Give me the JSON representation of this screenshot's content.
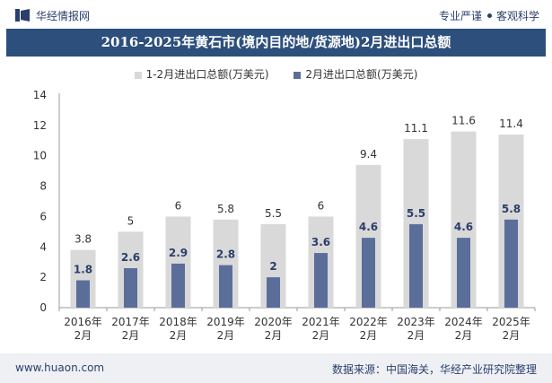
{
  "header": {
    "brand": "华经情报网",
    "tags": [
      "专业严谨",
      "客观科学"
    ]
  },
  "title": "2016-2025年黄石市(境内目的地/货源地)2月进出口总额",
  "footer": {
    "website": "www.huaon.com",
    "source": "数据来源：中国海关，华经产业研究院整理"
  },
  "colors": {
    "title_bg": "#2c4f7c",
    "series_total": "#d9d9d9",
    "series_feb": "#5b6e9a",
    "footer_bg": "#eef0f4"
  },
  "chart_data": {
    "type": "bar",
    "categories": [
      "2016年\n2月",
      "2017年\n2月",
      "2018年\n2月",
      "2019年\n2月",
      "2020年\n2月",
      "2021年\n2月",
      "2022年\n2月",
      "2023年\n2月",
      "2024年\n2月",
      "2025年\n2月"
    ],
    "series": [
      {
        "name": "1-2月进出口总额(万美元)",
        "values": [
          3.8,
          5,
          6,
          5.8,
          5.5,
          6,
          9.4,
          11.1,
          11.6,
          11.4
        ],
        "labels": [
          "3.8",
          "5",
          "6",
          "5.8",
          "5.5",
          "6",
          "9.4",
          "11.1",
          "11.6",
          "11.4"
        ],
        "color": "#d9d9d9"
      },
      {
        "name": "2月进出口总额(万美元)",
        "values": [
          1.8,
          2.6,
          2.9,
          2.8,
          2,
          3.6,
          4.6,
          5.5,
          4.6,
          5.8
        ],
        "labels": [
          "1.8",
          "2.6",
          "2.9",
          "2.8",
          "2",
          "3.6",
          "4.6",
          "5.5",
          "4.6",
          "5.8"
        ],
        "color": "#5b6e9a"
      }
    ],
    "yticks": [
      "0",
      "2",
      "4",
      "6",
      "8",
      "10",
      "12",
      "14"
    ],
    "ylim": [
      0,
      14
    ],
    "legend_position": "top-center",
    "grid": false
  }
}
